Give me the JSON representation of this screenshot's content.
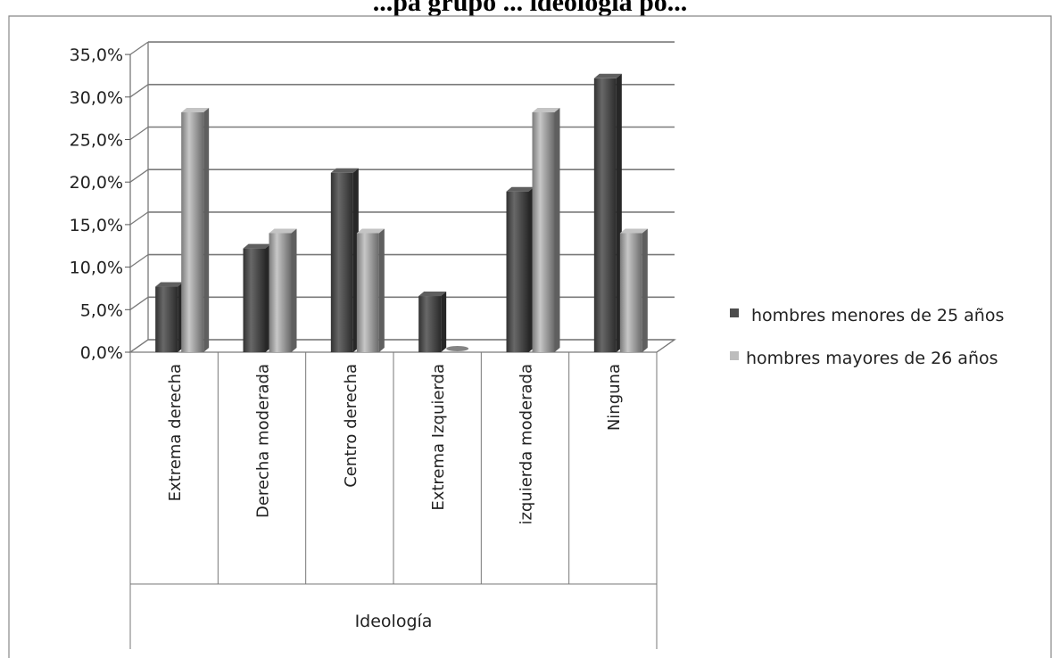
{
  "chart_data": {
    "type": "bar",
    "title": "...pa grupo ... ideología po...",
    "xlabel": "Ideología",
    "ylabel": "",
    "categories": [
      "Extrema derecha",
      "Derecha moderada",
      "Centro derecha",
      "Extrema Izquierda",
      "izquierda moderada",
      "Ninguna"
    ],
    "series": [
      {
        "name": "hombres menores de 25 años",
        "color": "#4d4d4d",
        "values": [
          7.7,
          12.2,
          21.1,
          6.6,
          18.9,
          32.2
        ]
      },
      {
        "name": "hombres mayores de 26 años",
        "color": "#bdbdbd",
        "values": [
          28.2,
          14.0,
          14.0,
          0.0,
          28.2,
          14.0
        ]
      }
    ],
    "ylim": [
      0,
      35
    ],
    "yticks": [
      0,
      5,
      10,
      15,
      20,
      25,
      30,
      35
    ],
    "ytick_labels": [
      "0,0%",
      "5,0%",
      "10,0%",
      "15,0%",
      "20,0%",
      "25,0%",
      "30,0%",
      "35,0%"
    ],
    "grid": true,
    "legend_position": "right",
    "style": "3d-column"
  }
}
